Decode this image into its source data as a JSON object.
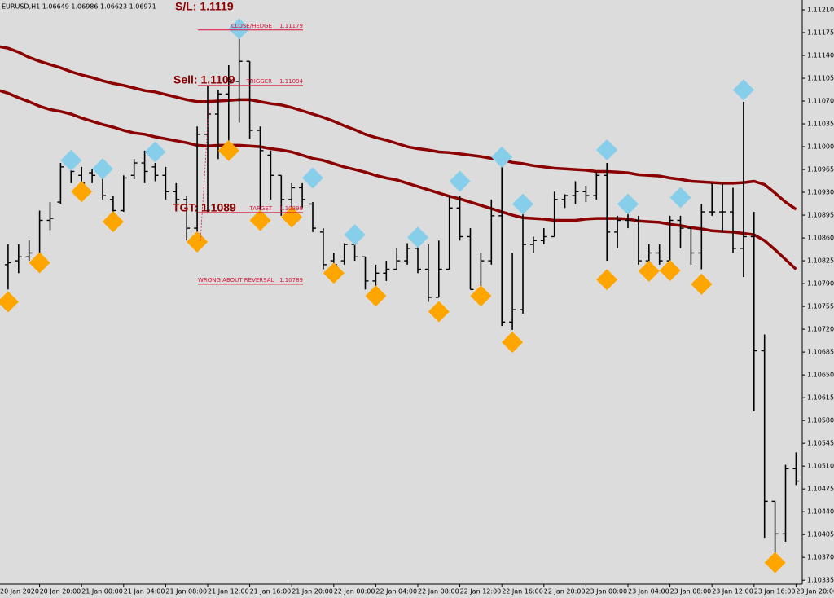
{
  "chart_data": {
    "type": "ohlc",
    "title": "EURUSD,H1  1.06649 1.06986 1.06623 1.06971",
    "categories": [
      "20 Jan 2020",
      null,
      null,
      null,
      "20 Jan 20:00",
      null,
      null,
      null,
      "21 Jan 00:00",
      null,
      null,
      null,
      "21 Jan 04:00",
      null,
      null,
      null,
      "21 Jan 08:00",
      null,
      null,
      null,
      "21 Jan 12:00",
      null,
      null,
      null,
      "21 Jan 16:00",
      null,
      null,
      null,
      "21 Jan 20:00",
      null,
      null,
      null,
      "22 Jan 00:00",
      null,
      null,
      null,
      "22 Jan 04:00",
      null,
      null,
      null,
      "22 Jan 08:00",
      null,
      null,
      null,
      "22 Jan 12:00",
      null,
      null,
      null,
      "22 Jan 16:00",
      null,
      null,
      null,
      "22 Jan 20:00",
      null,
      null,
      null,
      "23 Jan 00:00",
      null,
      null,
      null,
      "23 Jan 04:00",
      null,
      null,
      null,
      "23 Jan 08:00",
      null,
      null,
      null,
      "23 Jan 12:00",
      null,
      null,
      null,
      "23 Jan 16:00",
      null,
      null,
      null,
      "23 Jan 20:00"
    ],
    "open": [
      null,
      1.10819,
      1.10825,
      1.10831,
      1.10831,
      1.10887,
      1.10915,
      1.10969,
      1.10956,
      1.1096,
      1.10956,
      1.10919,
      1.10902,
      1.10956,
      1.10975,
      1.10969,
      1.10956,
      1.10931,
      1.10919,
      1.10875,
      1.11019,
      1.1105,
      1.11081,
      1.111,
      1.11131,
      1.11025,
      1.10987,
      1.10956,
      1.10919,
      1.10937,
      1.10912,
      1.10869,
      1.10825,
      1.10825,
      1.1085,
      1.10831,
      1.10794,
      1.10806,
      1.10812,
      1.10825,
      1.10844,
      1.10812,
      1.10769,
      1.10812,
      1.10906,
      1.10862,
      1.10781,
      1.10825,
      1.10894,
      1.10731,
      1.1075,
      1.1085,
      1.10856,
      1.10862,
      1.10919,
      1.10925,
      1.10931,
      1.10925,
      1.10956,
      1.10869,
      1.10887,
      1.10887,
      1.10825,
      1.10837,
      1.10825,
      1.10887,
      1.10875,
      1.10837,
      1.109,
      1.109,
      1.109,
      1.10844,
      1.10862,
      1.10687,
      1.10456,
      1.10406,
      1.10506
    ],
    "high": [
      null,
      1.1085,
      1.1085,
      1.10856,
      1.10902,
      1.10915,
      1.10975,
      1.10975,
      1.10969,
      1.10965,
      1.10962,
      1.10925,
      1.10956,
      1.10981,
      1.10994,
      1.10975,
      1.10969,
      1.10944,
      1.10925,
      1.11031,
      1.11094,
      1.11087,
      1.11125,
      1.11175,
      1.11131,
      1.11031,
      1.10994,
      1.10956,
      1.10944,
      1.10944,
      1.10915,
      1.10875,
      1.10837,
      1.10852,
      1.10856,
      1.10831,
      1.10819,
      1.10825,
      1.10844,
      1.10852,
      1.10852,
      1.1085,
      1.10856,
      1.10925,
      1.10925,
      1.10875,
      1.10837,
      1.10919,
      1.10981,
      1.10837,
      1.109,
      1.10862,
      1.10875,
      1.10931,
      1.10927,
      1.10947,
      1.1094,
      1.10962,
      1.10975,
      1.10894,
      1.10906,
      1.10894,
      1.1085,
      1.1085,
      1.10894,
      1.10894,
      1.10875,
      1.10912,
      1.10944,
      1.10944,
      1.10937,
      1.11069,
      1.109,
      1.10712,
      1.10456,
      1.10512,
      1.10531
    ],
    "low": [
      null,
      1.10781,
      1.10806,
      1.10825,
      1.10819,
      1.10872,
      1.10912,
      1.10944,
      1.10925,
      1.10944,
      1.10919,
      1.10885,
      1.109,
      1.1095,
      1.10944,
      1.10947,
      1.10919,
      1.10912,
      1.10856,
      1.10869,
      1.109,
      1.10981,
      1.11,
      1.11037,
      1.11012,
      1.10894,
      1.10919,
      1.10894,
      1.10906,
      1.10906,
      1.10869,
      1.10812,
      1.10806,
      1.10819,
      1.10825,
      1.10781,
      1.10775,
      1.10794,
      1.10812,
      1.10819,
      1.10806,
      1.10762,
      1.10769,
      1.10812,
      1.10856,
      1.10781,
      1.10769,
      1.10819,
      1.10725,
      1.10719,
      1.10744,
      1.10837,
      1.1085,
      1.10862,
      1.10906,
      1.10912,
      1.10915,
      1.10919,
      1.10825,
      1.10844,
      1.10875,
      1.10819,
      1.10812,
      1.10819,
      1.10825,
      1.10844,
      1.10819,
      1.10812,
      1.10894,
      1.10869,
      1.10837,
      1.108,
      1.10594,
      1.104,
      1.10362,
      1.10394,
      1.10481
    ],
    "close": [
      null,
      1.10822,
      1.10831,
      1.10837,
      1.10887,
      1.1089,
      1.10969,
      1.10962,
      1.10944,
      1.10956,
      1.10925,
      1.10902,
      1.10952,
      1.10975,
      1.10962,
      1.10956,
      1.10931,
      1.10919,
      1.10875,
      1.11019,
      1.1105,
      1.11081,
      1.111,
      1.11131,
      1.11025,
      1.10994,
      1.10956,
      1.10919,
      1.10937,
      1.10919,
      1.10875,
      1.10819,
      1.10819,
      1.1085,
      1.10831,
      1.10794,
      1.10806,
      1.10812,
      1.10825,
      1.10844,
      1.10812,
      1.10769,
      1.10812,
      1.10906,
      1.10862,
      1.10781,
      1.10825,
      1.10894,
      1.10731,
      1.1075,
      1.1085,
      1.10856,
      1.10862,
      1.10919,
      1.10925,
      1.10931,
      1.10925,
      1.10956,
      1.10869,
      1.10887,
      1.10887,
      1.10825,
      1.10837,
      1.10825,
      1.10887,
      1.10875,
      1.10837,
      1.109,
      1.109,
      1.109,
      1.10844,
      1.10862,
      1.10687,
      1.10456,
      1.10406,
      1.10506,
      1.10487
    ],
    "bar_color": "#000000",
    "lines": [
      {
        "color": "#8b0000",
        "values": [
          1.11154,
          1.11151,
          1.11145,
          1.11137,
          1.11131,
          1.11126,
          1.11121,
          1.11115,
          1.1111,
          1.11106,
          1.11101,
          1.11097,
          1.11094,
          1.1109,
          1.11086,
          1.11084,
          1.1108,
          1.11076,
          1.11072,
          1.11069,
          1.11069,
          1.1107,
          1.11071,
          1.11072,
          1.11072,
          1.11069,
          1.11066,
          1.11064,
          1.1106,
          1.11055,
          1.1105,
          1.11045,
          1.11039,
          1.11032,
          1.11026,
          1.11019,
          1.11014,
          1.1101,
          1.11005,
          1.11,
          1.10997,
          1.10995,
          1.10992,
          1.10991,
          1.10989,
          1.10987,
          1.10985,
          1.10982,
          1.1098,
          1.10976,
          1.10974,
          1.10971,
          1.10969,
          1.10967,
          1.10966,
          1.10965,
          1.10964,
          1.10962,
          1.10962,
          1.10961,
          1.1096,
          1.10957,
          1.10956,
          1.10955,
          1.10952,
          1.1095,
          1.10947,
          1.10946,
          1.10945,
          1.10944,
          1.10944,
          1.10945,
          1.10947,
          1.10942,
          1.10929,
          1.10915,
          1.10904
        ]
      },
      {
        "color": "#8b0000",
        "values": [
          1.11087,
          1.11082,
          1.11075,
          1.11069,
          1.11062,
          1.11057,
          1.11054,
          1.1105,
          1.11044,
          1.11039,
          1.11034,
          1.1103,
          1.11025,
          1.11021,
          1.11019,
          1.11015,
          1.11012,
          1.11009,
          1.11006,
          1.11002,
          1.11001,
          1.11002,
          1.11002,
          1.11002,
          1.11001,
          1.11,
          1.10997,
          1.10995,
          1.10992,
          1.10987,
          1.10982,
          1.10979,
          1.10974,
          1.10969,
          1.10965,
          1.10961,
          1.10956,
          1.10952,
          1.10949,
          1.10944,
          1.10939,
          1.10934,
          1.10929,
          1.10924,
          1.1092,
          1.10915,
          1.1091,
          1.10905,
          1.109,
          1.10895,
          1.10891,
          1.1089,
          1.10889,
          1.10887,
          1.10887,
          1.10887,
          1.10889,
          1.1089,
          1.1089,
          1.1089,
          1.10889,
          1.10886,
          1.10885,
          1.10884,
          1.10881,
          1.10879,
          1.10876,
          1.10874,
          1.10871,
          1.1087,
          1.10869,
          1.10867,
          1.10865,
          1.10856,
          1.10842,
          1.10827,
          1.10812
        ]
      }
    ],
    "signals": [
      {
        "color": "#87ceeb",
        "values": [
          null,
          null,
          null,
          null,
          null,
          null,
          null,
          1.10979,
          null,
          null,
          1.10966,
          null,
          null,
          null,
          null,
          1.10992,
          null,
          null,
          null,
          null,
          null,
          null,
          null,
          1.11181,
          null,
          null,
          null,
          null,
          null,
          null,
          1.10952,
          null,
          null,
          null,
          1.10865,
          null,
          null,
          null,
          null,
          null,
          1.10861,
          null,
          null,
          null,
          1.10947,
          null,
          null,
          null,
          1.10984,
          null,
          1.10912,
          null,
          null,
          null,
          null,
          null,
          null,
          null,
          1.10995,
          null,
          1.10912,
          null,
          null,
          null,
          null,
          1.10922,
          null,
          null,
          null,
          null,
          null,
          1.11087,
          null,
          null,
          null,
          null,
          null
        ]
      },
      {
        "color": "#ffa500",
        "values": [
          null,
          1.10762,
          null,
          null,
          1.10822,
          null,
          null,
          null,
          1.10931,
          null,
          null,
          1.10885,
          null,
          null,
          null,
          null,
          null,
          null,
          null,
          1.10854,
          null,
          null,
          1.10994,
          null,
          null,
          1.10887,
          null,
          null,
          1.10892,
          null,
          null,
          null,
          1.10806,
          null,
          null,
          null,
          1.10771,
          null,
          null,
          null,
          null,
          null,
          1.10747,
          null,
          null,
          null,
          1.10771,
          null,
          null,
          1.107,
          null,
          null,
          null,
          null,
          null,
          null,
          null,
          null,
          1.10796,
          null,
          null,
          null,
          1.10809,
          null,
          1.1081,
          null,
          null,
          1.10789,
          null,
          null,
          null,
          null,
          null,
          null,
          1.10362,
          null,
          null
        ]
      }
    ],
    "levels": [
      {
        "label": "CLOSE/HEDGE",
        "value": 1.11179,
        "color": "#dc143c"
      },
      {
        "label": "TRIGGER",
        "value": 1.11094,
        "color": "#dc143c"
      },
      {
        "label": "TARGET",
        "value": 1.10899,
        "color": "#dc143c"
      },
      {
        "label": "WRONG ABOUT REVERSAL",
        "value": 1.10789,
        "color": "#dc143c"
      }
    ],
    "annotations": [
      "S/L: 1.1119",
      "Sell: 1.1109",
      "TGT: 1.1089"
    ],
    "ylim": [
      1.10329,
      1.11225
    ],
    "yticks": [
      {
        "value": 1.1121,
        "label": "1.11210"
      },
      1.11175,
      {
        "value": 1.1114,
        "label": "1.11140"
      },
      1.11105,
      {
        "value": 1.1107,
        "label": "1.11070"
      },
      1.11035,
      {
        "value": 1.11,
        "label": "1.11000"
      },
      1.10965,
      {
        "value": 1.1093,
        "label": "1.10930"
      },
      1.10895,
      {
        "value": 1.1086,
        "label": "1.10860"
      },
      1.10825,
      {
        "value": 1.1079,
        "label": "1.10790"
      },
      1.10755,
      {
        "value": 1.1072,
        "label": "1.10720"
      },
      1.10685,
      {
        "value": 1.1065,
        "label": "1.10650"
      },
      1.10615,
      {
        "value": 1.1058,
        "label": "1.10580"
      },
      1.10545,
      {
        "value": 1.1051,
        "label": "1.10510"
      },
      1.10475,
      {
        "value": 1.1044,
        "label": "1.10440"
      },
      1.10405,
      {
        "value": 1.1037,
        "label": "1.10370"
      },
      1.10335
    ]
  }
}
